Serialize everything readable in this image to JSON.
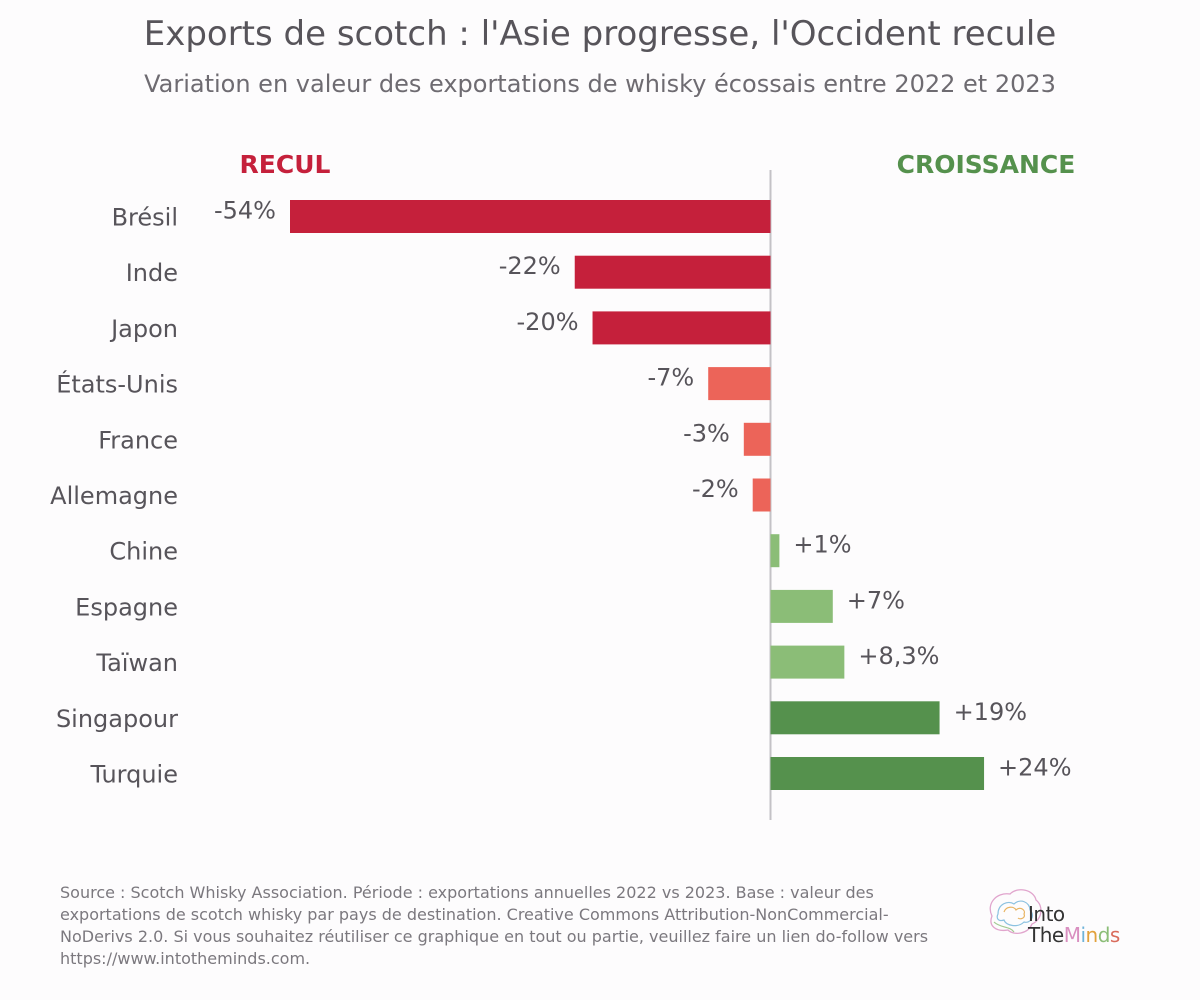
{
  "chart_data": {
    "type": "bar",
    "orientation": "horizontal",
    "title": "Exports de scotch : l'Asie progresse, l'Occident recule",
    "subtitle": "Variation en valeur des exportations de whisky écossais entre 2022 et 2023",
    "left_header": "RECUL",
    "right_header": "CROISSANCE",
    "xlim": [
      -54,
      24
    ],
    "grid": false,
    "categories": [
      "Brésil",
      "Inde",
      "Japon",
      "États-Unis",
      "France",
      "Allemagne",
      "Chine",
      "Espagne",
      "Taïwan",
      "Singapour",
      "Turquie"
    ],
    "values": [
      -54,
      -22,
      -20,
      -7,
      -3,
      -2,
      1,
      7,
      8.3,
      19,
      24
    ],
    "labels": [
      "-54%",
      "-22%",
      "-20%",
      "-7%",
      "-3%",
      "-2%",
      "+1%",
      "+7%",
      "+8,3%",
      "+19%",
      "+24%"
    ],
    "colors": [
      "#c5203b",
      "#c5203b",
      "#c5203b",
      "#ec6459",
      "#ec6459",
      "#ec6459",
      "#8bbd77",
      "#8bbd77",
      "#8bbd77",
      "#55914d",
      "#55914d"
    ]
  },
  "colors": {
    "decline_header": "#c5203b",
    "growth_header": "#55914d",
    "text": "#57545a",
    "axis": "#c4c2c6"
  },
  "footer": {
    "source": "Source : Scotch Whisky Association. Période : exportations annuelles 2022 vs 2023. Base : valeur des exportations de scotch whisky par pays de destination. Creative Commons Attribution-NonCommercial-NoDerivs 2.0. Si vous souhaitez réutiliser ce graphique en tout ou partie, veuillez faire un lien do-follow vers https://www.intotheminds.com."
  },
  "logo": {
    "line1": "Into",
    "line2_a": "The",
    "line2_letters": [
      "M",
      "i",
      "n",
      "d",
      "s"
    ],
    "line2_colors": [
      "#d98fc0",
      "#6fb3d9",
      "#e2a13b",
      "#8bbd77",
      "#d96b5c"
    ]
  }
}
